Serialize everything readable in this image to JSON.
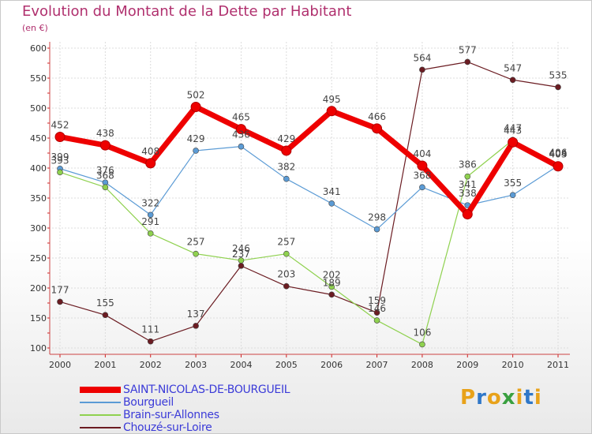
{
  "header": {
    "title": "Evolution du Montant de la Dette par Habitant",
    "unit": "(en €)"
  },
  "logo": {
    "text": "Proxiti",
    "letters": [
      {
        "ch": "P",
        "color": "#e8a21a"
      },
      {
        "ch": "r",
        "color": "#2f77c8"
      },
      {
        "ch": "o",
        "color": "#e8a21a"
      },
      {
        "ch": "x",
        "color": "#3aa040"
      },
      {
        "ch": "i",
        "color": "#e8a21a"
      },
      {
        "ch": "t",
        "color": "#2f77c8"
      },
      {
        "ch": "i",
        "color": "#e8a21a"
      }
    ]
  },
  "chart_data": {
    "type": "line",
    "title": "Evolution du Montant de la Dette par Habitant",
    "ylabel": "(en €)",
    "xlabel": "",
    "ylim": [
      100,
      600
    ],
    "yticks": [
      100,
      150,
      200,
      250,
      300,
      350,
      400,
      450,
      500,
      550,
      600
    ],
    "categories": [
      "2000",
      "2001",
      "2002",
      "2003",
      "2004",
      "2005",
      "2006",
      "2007",
      "2008",
      "2009",
      "2010",
      "2011"
    ],
    "grid": true,
    "legend": "bottom-left",
    "series": [
      {
        "name": "SAINT-NICOLAS-DE-BOURGUEIL",
        "color": "#ee0000",
        "values": [
          452,
          438,
          408,
          502,
          465,
          429,
          495,
          466,
          404,
          323,
          443,
          403
        ],
        "labels": [
          "452",
          "438",
          "408",
          "502",
          "465",
          "429",
          "495",
          "466",
          "404",
          "",
          "443",
          "403"
        ]
      },
      {
        "name": "Bourgueil",
        "color": "#5b9bd5",
        "values": [
          399,
          376,
          322,
          429,
          436,
          382,
          341,
          298,
          368,
          338,
          355,
          404
        ],
        "labels": [
          "399",
          "376",
          "322",
          "429",
          "436",
          "382",
          "341",
          "298",
          "368",
          "338",
          "355",
          "404"
        ]
      },
      {
        "name": "Brain-sur-Allonnes",
        "color": "#8fd14f",
        "values": [
          393,
          368,
          291,
          257,
          246,
          257,
          202,
          146,
          106,
          386,
          447,
          406
        ],
        "labels": [
          "393",
          "368",
          "291",
          "257",
          "246",
          "257",
          "202",
          "146",
          "106",
          "386",
          "447",
          "406"
        ]
      },
      {
        "name": "Chouzé-sur-Loire",
        "color": "#6b1c22",
        "values": [
          177,
          155,
          111,
          137,
          237,
          203,
          189,
          159,
          564,
          577,
          547,
          535
        ],
        "labels": [
          "177",
          "155",
          "111",
          "137",
          "237",
          "203",
          "189",
          "159",
          "564",
          "577",
          "547",
          "535"
        ]
      }
    ],
    "extra_labels": [
      "341"
    ]
  }
}
